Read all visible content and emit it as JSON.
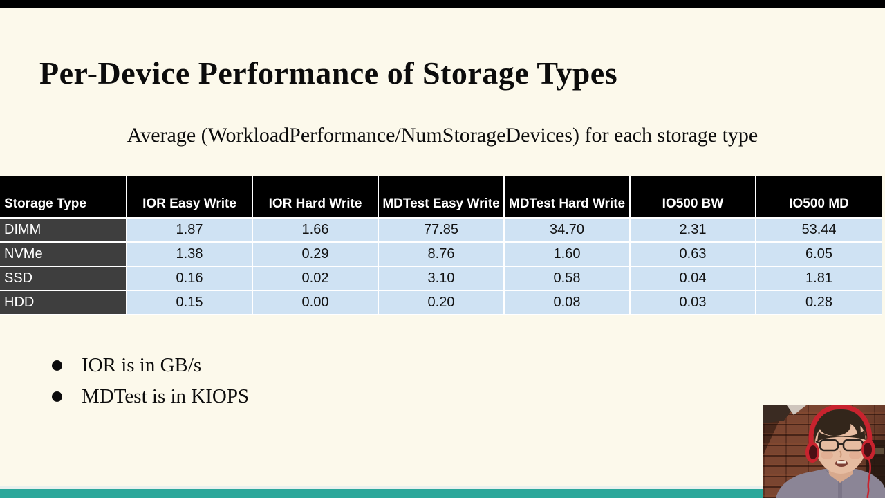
{
  "slide": {
    "title": "Per-Device Performance of Storage Types",
    "subtitle": "Average (WorkloadPerformance/NumStorageDevices) for each storage type",
    "bullets": [
      "IOR is in GB/s",
      "MDTest is in KIOPS"
    ]
  },
  "table": {
    "columns": [
      "Storage Type",
      "IOR Easy Write",
      "IOR Hard Write",
      "MDTest Easy Write",
      "MDTest Hard Write",
      "IO500 BW",
      "IO500 MD"
    ],
    "rows": [
      {
        "label": "DIMM",
        "values": [
          "1.87",
          "1.66",
          "77.85",
          "34.70",
          "2.31",
          "53.44"
        ]
      },
      {
        "label": "NVMe",
        "values": [
          "1.38",
          "0.29",
          "8.76",
          "1.60",
          "0.63",
          "6.05"
        ]
      },
      {
        "label": "SSD",
        "values": [
          "0.16",
          "0.02",
          "3.10",
          "0.58",
          "0.04",
          "1.81"
        ]
      },
      {
        "label": "HDD",
        "values": [
          "0.15",
          "0.00",
          "0.20",
          "0.08",
          "0.03",
          "0.28"
        ]
      }
    ]
  },
  "chart_data": {
    "type": "table",
    "title": "Per-Device Performance of Storage Types",
    "categories": [
      "IOR Easy Write",
      "IOR Hard Write",
      "MDTest Easy Write",
      "MDTest Hard Write",
      "IO500 BW",
      "IO500 MD"
    ],
    "series": [
      {
        "name": "DIMM",
        "values": [
          1.87,
          1.66,
          77.85,
          34.7,
          2.31,
          53.44
        ]
      },
      {
        "name": "NVMe",
        "values": [
          1.38,
          0.29,
          8.76,
          1.6,
          0.63,
          6.05
        ]
      },
      {
        "name": "SSD",
        "values": [
          0.16,
          0.02,
          3.1,
          0.58,
          0.04,
          1.81
        ]
      },
      {
        "name": "HDD",
        "values": [
          0.15,
          0.0,
          0.2,
          0.08,
          0.03,
          0.28
        ]
      }
    ],
    "units": {
      "IOR": "GB/s",
      "MDTest": "KIOPS"
    }
  },
  "colors": {
    "background": "#fcf9eb",
    "footer_teal": "#2ba79a",
    "cell_blue": "#cfe2f3",
    "row_label_gray": "#3e3e3e",
    "header_black": "#000000",
    "letterbox_black": "#000000"
  },
  "webcam": {
    "description": "presenter webcam overlay"
  }
}
